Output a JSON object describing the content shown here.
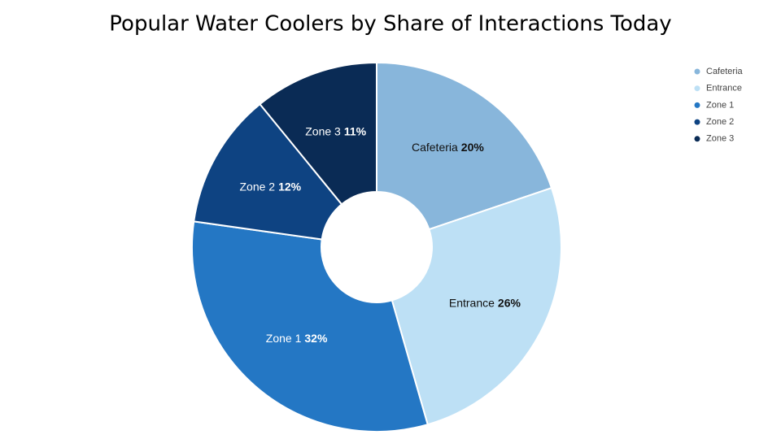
{
  "chart_data": {
    "type": "donut",
    "title": "Popular Water Coolers by Share of Interactions Today",
    "categories": [
      "Cafeteria",
      "Entrance",
      "Zone 1",
      "Zone 2",
      "Zone 3"
    ],
    "values": [
      20,
      26,
      32,
      12,
      11
    ],
    "value_labels": [
      "20%",
      "26%",
      "32%",
      "12%",
      "11%"
    ],
    "colors": [
      "#88b6db",
      "#bde0f5",
      "#2477c4",
      "#0e4382",
      "#0a2b55"
    ],
    "legend": "top-right"
  }
}
